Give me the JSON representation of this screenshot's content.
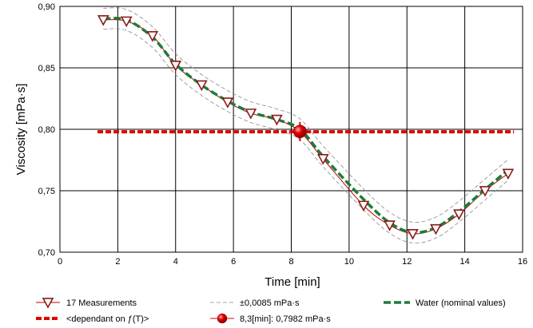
{
  "chart_data": {
    "type": "line",
    "xlabel": "Time [min]",
    "ylabel": "Viscosity [mPa·s]",
    "xlim": [
      0,
      16
    ],
    "ylim": [
      0.7,
      0.9
    ],
    "grid": true,
    "x_ticks": [
      0,
      2,
      4,
      6,
      8,
      10,
      12,
      14,
      16
    ],
    "x_tick_labels": [
      "0",
      "2",
      "4",
      "6",
      "8",
      "10",
      "12",
      "14",
      "16"
    ],
    "y_ticks": [
      0.7,
      0.75,
      0.8,
      0.85,
      0.9
    ],
    "y_tick_labels": [
      "0,70",
      "0,75",
      "0,80",
      "0,85",
      "0,90"
    ],
    "series": [
      {
        "name": "17 Measurements",
        "kind": "markers",
        "color": "#8b1a1a",
        "x": [
          1.5,
          2.3,
          3.2,
          4.0,
          4.9,
          5.8,
          6.6,
          7.5,
          8.3,
          9.1,
          10.5,
          11.4,
          12.2,
          13.0,
          13.8,
          14.7,
          15.5
        ],
        "y": [
          0.889,
          0.888,
          0.876,
          0.852,
          0.836,
          0.822,
          0.813,
          0.808,
          0.798,
          0.776,
          0.738,
          0.722,
          0.715,
          0.719,
          0.731,
          0.75,
          0.764
        ]
      },
      {
        "name": "±0,0085 mPa·s",
        "kind": "tolerance-band",
        "color": "#888888",
        "tolerance": 0.0085
      },
      {
        "name": "Water (nominal values)",
        "kind": "dashed-line",
        "color": "#1e7b3a",
        "x": [
          1.5,
          2.3,
          3.2,
          4.0,
          4.9,
          5.8,
          6.6,
          7.5,
          8.3,
          9.1,
          10.5,
          11.4,
          12.2,
          13.0,
          13.8,
          14.7,
          15.5
        ],
        "y": [
          0.89,
          0.889,
          0.875,
          0.853,
          0.836,
          0.823,
          0.814,
          0.808,
          0.8,
          0.778,
          0.743,
          0.724,
          0.716,
          0.72,
          0.733,
          0.751,
          0.767
        ]
      },
      {
        "name": "<dependant on ƒ(T)>",
        "kind": "dashed-hline",
        "color": "#e00000",
        "x": [
          1.3,
          15.7
        ],
        "y": [
          0.798,
          0.798
        ]
      },
      {
        "name": "8,3[min]: 0,7982 mPa·s",
        "kind": "highlight-point",
        "color": "#e00000",
        "x": 8.3,
        "y": 0.7982
      }
    ]
  }
}
